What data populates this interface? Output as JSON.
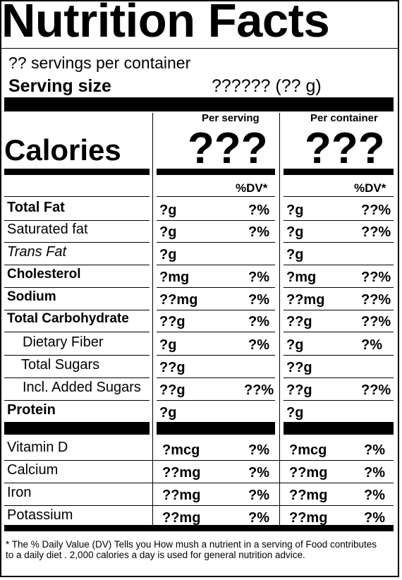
{
  "header": {
    "title": "Nutrition Facts",
    "servings_per_container": "?? servings per container",
    "serving_size_label": "Serving size",
    "serving_size_value": "?????? (?? g)"
  },
  "columns": {
    "per_serving": "Per serving",
    "per_container": "Per container"
  },
  "calories": {
    "label": "Calories",
    "per_serving": "???",
    "per_container": "???"
  },
  "dv_header": "%DV*",
  "nutrients": [
    {
      "name": "Total Fat",
      "serving_amount": "?g",
      "serving_dv": "?%",
      "container_amount": "?g",
      "container_dv": "??%"
    },
    {
      "name": "Saturated fat",
      "serving_amount": "?g",
      "serving_dv": "?%",
      "container_amount": "?g",
      "container_dv": "??%"
    },
    {
      "name": "Trans Fat",
      "serving_amount": "?g",
      "serving_dv": "",
      "container_amount": "?g",
      "container_dv": ""
    },
    {
      "name": "Cholesterol",
      "serving_amount": "?mg",
      "serving_dv": "?%",
      "container_amount": "?mg",
      "container_dv": "??%"
    },
    {
      "name": "Sodium",
      "serving_amount": "??mg",
      "serving_dv": "?%",
      "container_amount": "??mg",
      "container_dv": "??%"
    },
    {
      "name": "Total Carbohydrate",
      "serving_amount": "??g",
      "serving_dv": "?%",
      "container_amount": "??g",
      "container_dv": "??%"
    },
    {
      "name": "Dietary Fiber",
      "serving_amount": "?g",
      "serving_dv": "?%",
      "container_amount": "?g",
      "container_dv": "?%"
    },
    {
      "name": "Total Sugars",
      "serving_amount": "??g",
      "serving_dv": "",
      "container_amount": "??g",
      "container_dv": ""
    },
    {
      "name": "Incl. Added Sugars",
      "serving_amount": "??g",
      "serving_dv": "??%",
      "container_amount": "??g",
      "container_dv": "??%"
    },
    {
      "name": "Protein",
      "serving_amount": "?g",
      "serving_dv": "",
      "container_amount": "?g",
      "container_dv": ""
    }
  ],
  "vitamins": [
    {
      "name": "Vitamin D",
      "serving_amount": "?mcg",
      "serving_dv": "?%",
      "container_amount": "?mcg",
      "container_dv": "?%"
    },
    {
      "name": "Calcium",
      "serving_amount": "??mg",
      "serving_dv": "?%",
      "container_amount": "??mg",
      "container_dv": "?%"
    },
    {
      "name": "Iron",
      "serving_amount": "??mg",
      "serving_dv": "?%",
      "container_amount": "??mg",
      "container_dv": "?%"
    },
    {
      "name": "Potassium",
      "serving_amount": "??mg",
      "serving_dv": "?%",
      "container_amount": "??mg",
      "container_dv": "?%"
    }
  ],
  "footnote": "* The % Daily Value (DV) Tells you How mush a nutrient in a serving of Food contributes to a daily diet . 2,000 calories a day is used for general nutrition advice."
}
